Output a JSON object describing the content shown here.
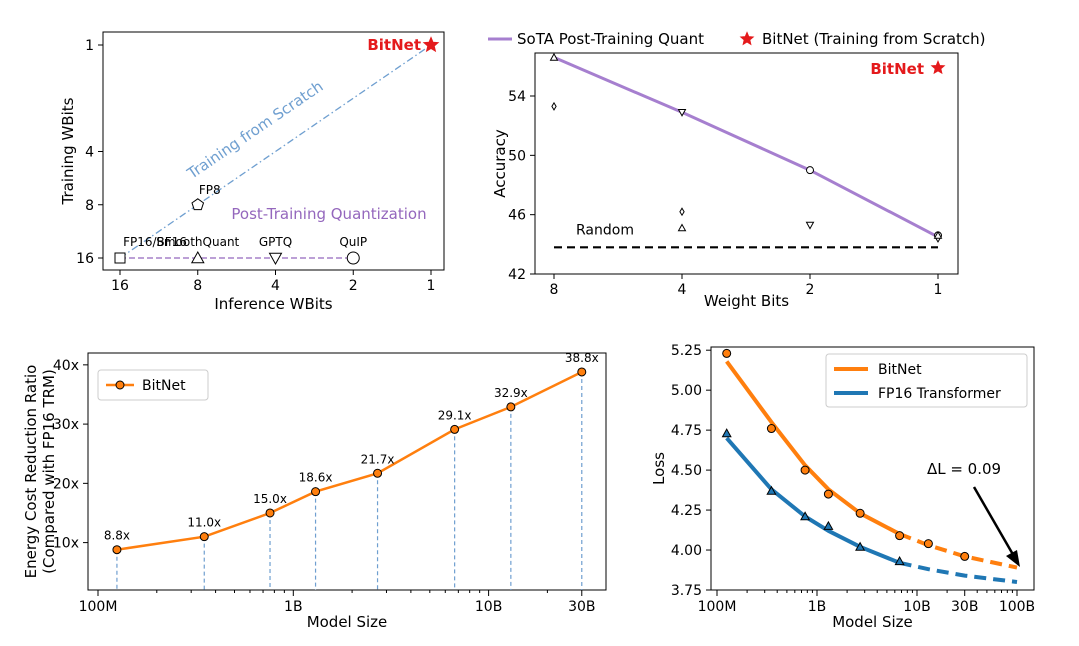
{
  "chart_data": [
    {
      "type": "scatter",
      "xlabel": "Inference WBits",
      "ylabel": "Training WBits",
      "x_ticks": [
        "16",
        "8",
        "4",
        "2",
        "1"
      ],
      "y_ticks": [
        "1",
        "4",
        "8",
        "16"
      ],
      "scale": "log2 (both axes, inverted)",
      "grid": false,
      "lines": [
        {
          "name": "Training from Scratch",
          "color": "#6f9fd0",
          "style": "dash-dot",
          "from": [
            16,
            16
          ],
          "to": [
            1,
            1
          ]
        },
        {
          "name": "Post-Training Quantization",
          "color": "#9467bd",
          "style": "dashed",
          "from": [
            16,
            16
          ],
          "to": [
            2,
            16
          ]
        }
      ],
      "points": [
        {
          "label": "BitNet",
          "x": 1,
          "y": 1,
          "marker": "star",
          "color": "#e41a1c"
        },
        {
          "label": "FP8",
          "x": 8,
          "y": 8,
          "marker": "pentagon"
        },
        {
          "label": "FP16/BF16",
          "x": 16,
          "y": 16,
          "marker": "square"
        },
        {
          "label": "SmoothQuant",
          "x": 8,
          "y": 16,
          "marker": "triangle-up"
        },
        {
          "label": "GPTQ",
          "x": 4,
          "y": 16,
          "marker": "triangle-down"
        },
        {
          "label": "QuIP",
          "x": 2,
          "y": 16,
          "marker": "circle"
        }
      ]
    },
    {
      "type": "line",
      "xlabel": "Weight Bits",
      "ylabel": "Accuracy",
      "x_ticks": [
        "8",
        "4",
        "2",
        "1"
      ],
      "y_ticks": [
        "42",
        "46",
        "50",
        "54"
      ],
      "ylim": [
        42,
        56.9
      ],
      "grid": false,
      "legend": [
        "SoTA Post-Training Quant",
        "BitNet (Training from Scratch)"
      ],
      "legend_placement": "top",
      "series": [
        {
          "name": "SoTA Post-Training Quant",
          "color": "#a67fcf",
          "x": [
            8,
            4,
            2,
            1
          ],
          "y": [
            56.6,
            52.9,
            49.0,
            44.5
          ]
        }
      ],
      "markers": [
        {
          "x": 8,
          "y": 56.6,
          "marker": "triangle-up"
        },
        {
          "x": 8,
          "y": 53.3,
          "marker": "diamond"
        },
        {
          "x": 4,
          "y": 52.9,
          "marker": "triangle-down"
        },
        {
          "x": 4,
          "y": 46.2,
          "marker": "diamond"
        },
        {
          "x": 4,
          "y": 45.1,
          "marker": "triangle-up"
        },
        {
          "x": 2,
          "y": 49.0,
          "marker": "circle"
        },
        {
          "x": 2,
          "y": 45.3,
          "marker": "triangle-down"
        },
        {
          "x": 1,
          "y": 44.6,
          "marker": "circle"
        },
        {
          "x": 1,
          "y": 44.4,
          "marker": "diamond"
        },
        {
          "x": 1,
          "y": 44.6,
          "marker": "triangle-up"
        }
      ],
      "bitnet": {
        "label": "BitNet",
        "x": 1,
        "y": 55.9,
        "color": "#e41a1c"
      },
      "random": {
        "label": "Random",
        "y": 43.8
      }
    },
    {
      "type": "line",
      "xlabel": "Model Size",
      "ylabel": "Energy Cost Reduction Ratio\n(Compared with FP16 TRM)",
      "ylabel_lines": [
        "Energy Cost Reduction Ratio",
        "(Compared with FP16 TRM)"
      ],
      "x_ticks": [
        "100M",
        "1B",
        "10B",
        "30B"
      ],
      "x_scale": "log",
      "y_ticks": [
        "10x",
        "20x",
        "30x",
        "40x"
      ],
      "ylim": [
        2,
        42
      ],
      "grid": false,
      "legend": [
        "BitNet"
      ],
      "legend_placement": "top-left",
      "series": [
        {
          "name": "BitNet",
          "color": "#ff7f0e",
          "x": [
            125000000,
            350000000,
            760000000,
            1300000000,
            2700000000,
            6700000000,
            13000000000,
            30000000000
          ],
          "y": [
            8.8,
            11.0,
            15.0,
            18.6,
            21.7,
            29.1,
            32.9,
            38.8
          ],
          "labels": [
            "8.8x",
            "11.0x",
            "15.0x",
            "18.6x",
            "21.7x",
            "29.1x",
            "32.9x",
            "38.8x"
          ]
        }
      ]
    },
    {
      "type": "line",
      "xlabel": "Model Size",
      "ylabel": "Loss",
      "x_ticks": [
        "100M",
        "1B",
        "10B",
        "30B",
        "100B"
      ],
      "x_scale": "log",
      "y_ticks": [
        "3.75",
        "4.00",
        "4.25",
        "4.50",
        "4.75",
        "5.00",
        "5.25"
      ],
      "ylim": [
        3.75,
        5.27
      ],
      "grid": false,
      "legend": [
        "BitNet",
        "FP16 Transformer"
      ],
      "legend_placement": "top-right",
      "series": [
        {
          "name": "BitNet",
          "color": "#ff7f0e",
          "marker": "circle",
          "x": [
            125000000,
            350000000,
            760000000,
            1300000000,
            2700000000,
            6700000000,
            13000000000,
            30000000000
          ],
          "y": [
            5.23,
            4.76,
            4.5,
            4.35,
            4.23,
            4.09,
            4.04,
            3.96
          ]
        },
        {
          "name": "FP16 Transformer",
          "color": "#1f77b4",
          "marker": "triangle-up",
          "x": [
            125000000,
            350000000,
            760000000,
            1300000000,
            2700000000,
            6700000000
          ],
          "y": [
            4.73,
            4.37,
            4.21,
            4.15,
            4.02,
            3.93
          ]
        }
      ],
      "fit_curves": [
        {
          "name": "BitNet",
          "points": [
            [
              125000000,
              5.18
            ],
            [
              350000000,
              4.8
            ],
            [
              760000000,
              4.53
            ],
            [
              1300000000,
              4.38
            ],
            [
              2700000000,
              4.23
            ],
            [
              6700000000,
              4.1
            ],
            [
              13000000000,
              4.03
            ],
            [
              30000000000,
              3.96
            ],
            [
              100000000000,
              3.89
            ]
          ]
        },
        {
          "name": "FP16 Transformer",
          "points": [
            [
              125000000,
              4.7
            ],
            [
              350000000,
              4.38
            ],
            [
              760000000,
              4.21
            ],
            [
              1300000000,
              4.12
            ],
            [
              2700000000,
              4.02
            ],
            [
              6700000000,
              3.92
            ],
            [
              13000000000,
              3.88
            ],
            [
              30000000000,
              3.84
            ],
            [
              100000000000,
              3.8
            ]
          ]
        }
      ],
      "annotation": "ΔL = 0.09"
    }
  ]
}
